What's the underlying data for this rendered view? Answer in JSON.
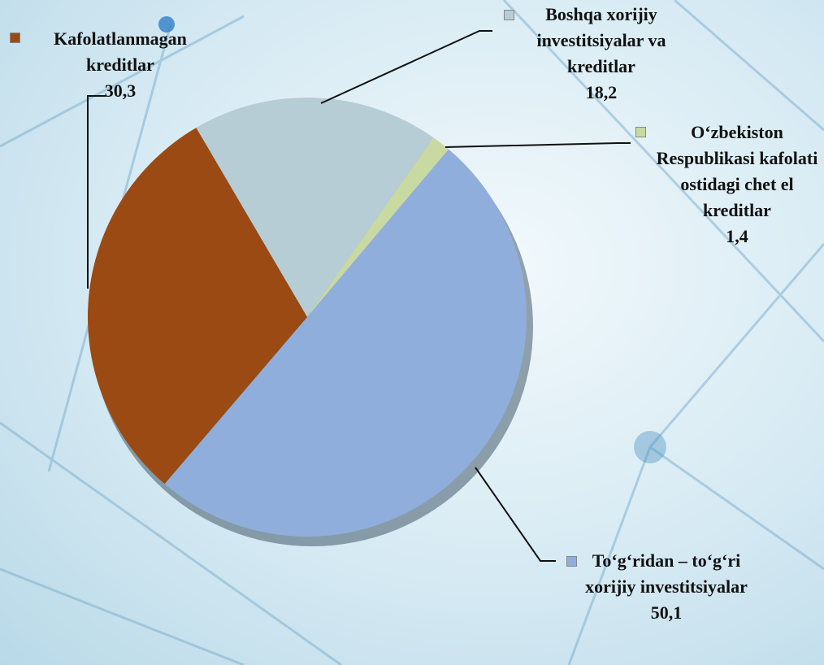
{
  "chart_data": {
    "type": "pie",
    "categories": [
      "Boshqa xorijiy investitsiyalar va kreditlar",
      "O‘zbekiston Respublikasi kafolati ostidagi chet el kreditlar",
      "To‘g‘ridan – to‘g‘ri xorijiy investitsiyalar",
      "Kafolatlanmagan kreditlar"
    ],
    "values": [
      18.2,
      1.4,
      50.1,
      30.3
    ],
    "value_labels": [
      "18,2",
      "1,4",
      "50,1",
      "30,3"
    ],
    "colors": [
      "#b7cdd6",
      "#c9d9a2",
      "#8faedc",
      "#9a4a12"
    ]
  }
}
